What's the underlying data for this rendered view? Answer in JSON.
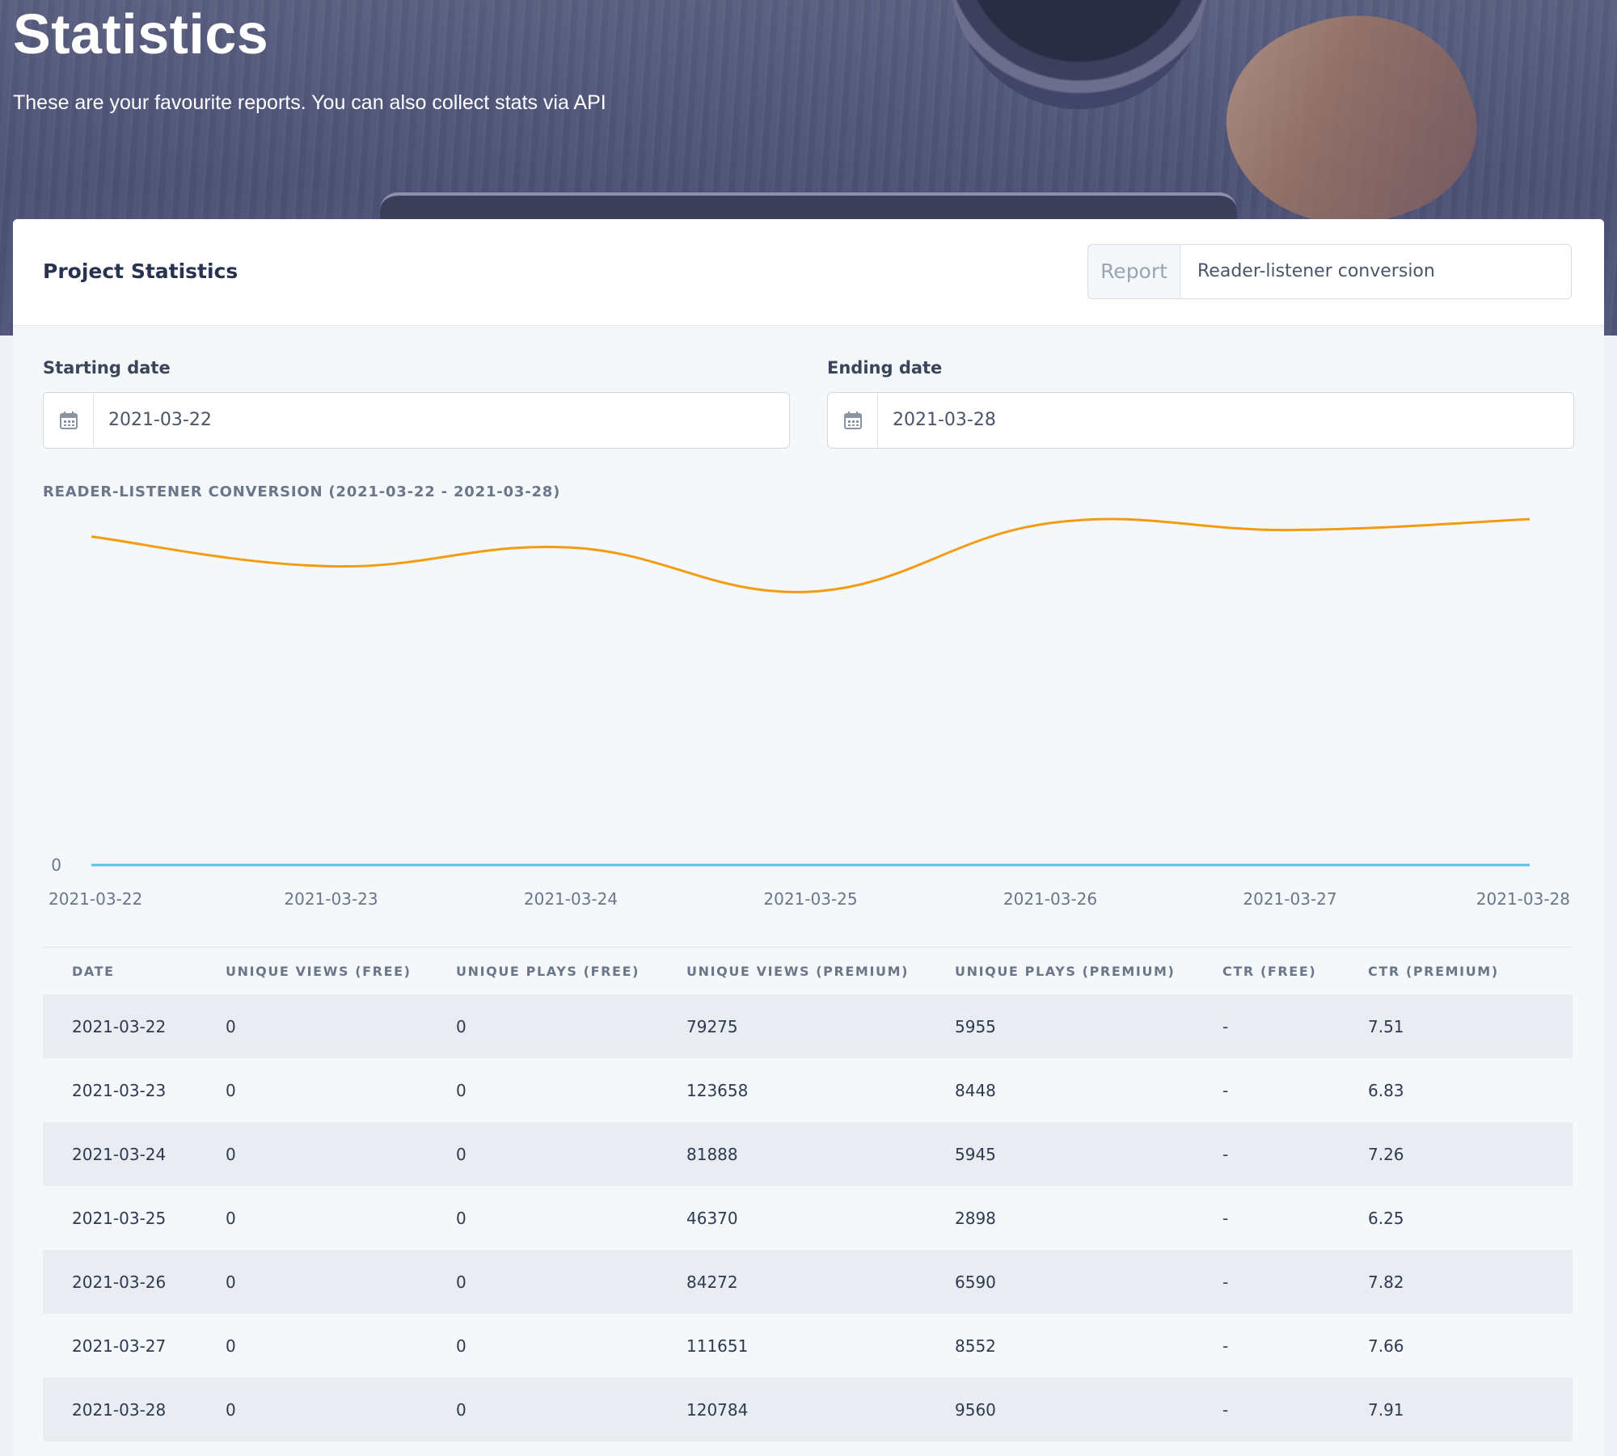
{
  "page": {
    "title": "Statistics",
    "subtitle": "These are your favourite reports. You can also collect stats via API"
  },
  "card": {
    "title": "Project Statistics",
    "report": {
      "label": "Report",
      "value": "Reader-listener conversion"
    }
  },
  "filters": {
    "start": {
      "label": "Starting date",
      "value": "2021-03-22"
    },
    "end": {
      "label": "Ending date",
      "value": "2021-03-28"
    }
  },
  "chart_data": {
    "type": "line",
    "title": "READER-LISTENER CONVERSION (2021-03-22 - 2021-03-28)",
    "x": [
      "2021-03-22",
      "2021-03-23",
      "2021-03-24",
      "2021-03-25",
      "2021-03-26",
      "2021-03-27",
      "2021-03-28"
    ],
    "series": [
      {
        "values": [
          7.51,
          6.83,
          7.26,
          6.25,
          7.82,
          7.66,
          7.91
        ],
        "color": "#f39c12"
      },
      {
        "values": [
          0,
          0,
          0,
          0,
          0,
          0,
          0
        ],
        "color": "#5bc0eb"
      }
    ],
    "y_tick_labels": [
      "0"
    ],
    "ylim": [
      0,
      8.3
    ],
    "grid": false,
    "smooth": true
  },
  "table": {
    "columns": [
      "DATE",
      "UNIQUE VIEWS (FREE)",
      "UNIQUE PLAYS (FREE)",
      "UNIQUE VIEWS (PREMIUM)",
      "UNIQUE PLAYS (PREMIUM)",
      "CTR (FREE)",
      "CTR (PREMIUM)"
    ],
    "rows": [
      [
        "2021-03-22",
        "0",
        "0",
        "79275",
        "5955",
        "-",
        "7.51"
      ],
      [
        "2021-03-23",
        "0",
        "0",
        "123658",
        "8448",
        "-",
        "6.83"
      ],
      [
        "2021-03-24",
        "0",
        "0",
        "81888",
        "5945",
        "-",
        "7.26"
      ],
      [
        "2021-03-25",
        "0",
        "0",
        "46370",
        "2898",
        "-",
        "6.25"
      ],
      [
        "2021-03-26",
        "0",
        "0",
        "84272",
        "6590",
        "-",
        "7.82"
      ],
      [
        "2021-03-27",
        "0",
        "0",
        "111651",
        "8552",
        "-",
        "7.66"
      ],
      [
        "2021-03-28",
        "0",
        "0",
        "120784",
        "9560",
        "-",
        "7.91"
      ]
    ]
  },
  "icons": {
    "calendar": "calendar-icon"
  }
}
